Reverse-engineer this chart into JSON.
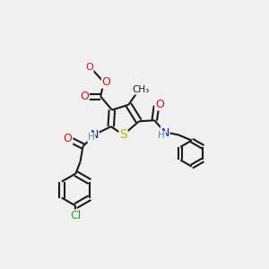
{
  "bg": "#f0f0f0",
  "bc": "#1a1a1a",
  "bw": 1.5,
  "dbo": 0.014,
  "fs": 9.0,
  "colors": {
    "S": "#b8b800",
    "N": "#1414cc",
    "O": "#cc1414",
    "H": "#3a9898",
    "Cl": "#14aa14",
    "C": "#1a1a1a"
  }
}
